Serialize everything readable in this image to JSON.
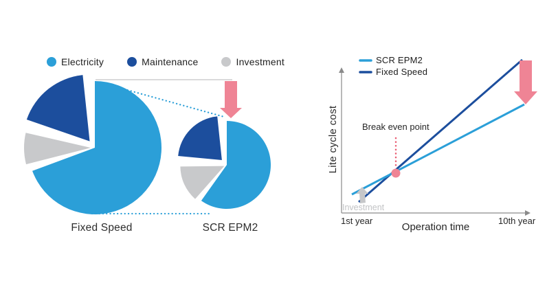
{
  "palette": {
    "electricity_blue": "#2b9fd8",
    "maintenance_blue": "#1c4e9d",
    "investment_gray": "#c8c9cb",
    "highlight_pink": "#ef8495",
    "breakeven_red": "#e95d72",
    "axis_gray": "#8a8a8a",
    "text_dark": "#262626",
    "muted_gray": "#c2c3c5"
  },
  "legend": {
    "items": [
      {
        "label": "Electricity",
        "color": "#2b9fd8"
      },
      {
        "label": "Maintenance",
        "color": "#1c4e9d"
      },
      {
        "label": "Investment",
        "color": "#c8c9cb"
      }
    ]
  },
  "pies": {
    "fixed_speed_label": "Fixed Speed",
    "scr_epm2_label": "SCR EPM2"
  },
  "line_chart": {
    "legend": [
      {
        "label": "SCR EPM2",
        "color": "#2b9fd8"
      },
      {
        "label": "Fixed Speed",
        "color": "#1c4e9d"
      }
    ],
    "ylabel": "Lite cycle cost",
    "xlabel": "Operation time",
    "x_start_label": "1st year",
    "x_end_label": "10th year",
    "breakeven_label": "Break even point",
    "investment_label": "Investment"
  },
  "chart_data": [
    {
      "type": "pie",
      "title": "Fixed Speed",
      "labels": [
        "Electricity",
        "Maintenance",
        "Investment"
      ],
      "values": [
        73,
        19,
        8
      ],
      "colors": [
        "#2b9fd8",
        "#1c4e9d",
        "#c8c9cb"
      ],
      "notes": "Large pie; Maintenance and Investment wedges exploded"
    },
    {
      "type": "pie",
      "title": "SCR EPM2",
      "labels": [
        "Electricity",
        "Maintenance",
        "Investment"
      ],
      "values": [
        63,
        23,
        14
      ],
      "colors": [
        "#2b9fd8",
        "#1c4e9d",
        "#c8c9cb"
      ],
      "notes": "Smaller pie (reduced total cost), pink arrow pointing down onto it"
    },
    {
      "type": "line",
      "title": "",
      "xlabel": "Operation time",
      "ylabel": "Lite cycle cost",
      "x_range_labels": [
        "1st year",
        "10th year"
      ],
      "series": [
        {
          "name": "SCR EPM2",
          "color": "#2b9fd8",
          "x": [
            1,
            10
          ],
          "y": [
            22,
            60
          ]
        },
        {
          "name": "Fixed Speed",
          "color": "#1c4e9d",
          "x": [
            1,
            10
          ],
          "y": [
            13,
            90
          ]
        }
      ],
      "annotations": [
        {
          "label": "Break even point",
          "x": 3.9
        },
        {
          "label": "Investment",
          "x": 1
        }
      ],
      "legend_position": "top-left",
      "grid": false
    }
  ]
}
